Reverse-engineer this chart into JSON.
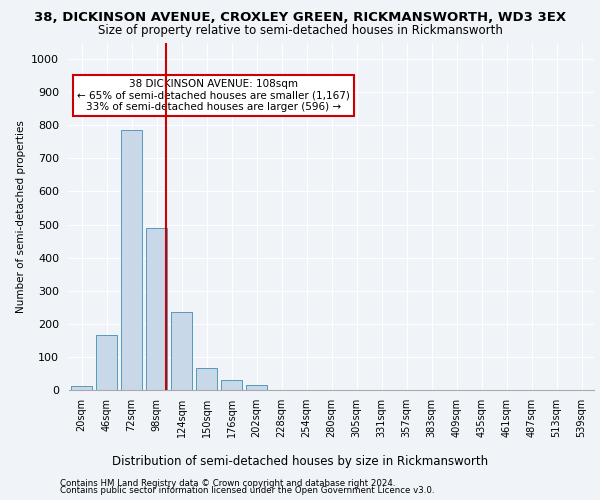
{
  "title1": "38, DICKINSON AVENUE, CROXLEY GREEN, RICKMANSWORTH, WD3 3EX",
  "title2": "Size of property relative to semi-detached houses in Rickmansworth",
  "xlabel": "Distribution of semi-detached houses by size in Rickmansworth",
  "ylabel": "Number of semi-detached properties",
  "footer1": "Contains HM Land Registry data © Crown copyright and database right 2024.",
  "footer2": "Contains public sector information licensed under the Open Government Licence v3.0.",
  "bar_color": "#c8d8e8",
  "bar_edge_color": "#5599bb",
  "bar_values": [
    12,
    165,
    785,
    490,
    237,
    65,
    30,
    15,
    0,
    0,
    0,
    0,
    0,
    0,
    0,
    0,
    0,
    0,
    0,
    0,
    0
  ],
  "categories": [
    "20sqm",
    "46sqm",
    "72sqm",
    "98sqm",
    "124sqm",
    "150sqm",
    "176sqm",
    "202sqm",
    "228sqm",
    "254sqm",
    "280sqm",
    "305sqm",
    "331sqm",
    "357sqm",
    "383sqm",
    "409sqm",
    "435sqm",
    "461sqm",
    "487sqm",
    "513sqm",
    "539sqm"
  ],
  "ylim": [
    0,
    1050
  ],
  "yticks": [
    0,
    100,
    200,
    300,
    400,
    500,
    600,
    700,
    800,
    900,
    1000
  ],
  "vline_x": 3.38,
  "vline_color": "#cc0000",
  "annotation_text": "38 DICKINSON AVENUE: 108sqm\n← 65% of semi-detached houses are smaller (1,167)\n33% of semi-detached houses are larger (596) →",
  "annotation_box_color": "#ffffff",
  "annotation_box_edge_color": "#cc0000",
  "background_color": "#f0f4f8",
  "grid_color": "#ffffff",
  "title1_fontsize": 9.5,
  "title2_fontsize": 8.5
}
